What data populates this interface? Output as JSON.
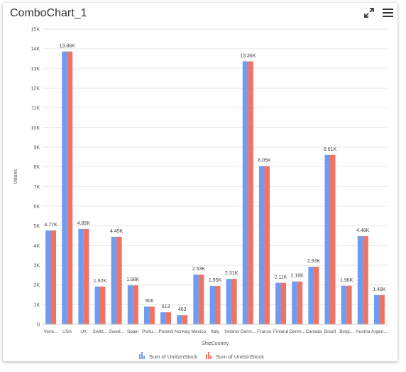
{
  "header": {
    "title": "ComboChart_1",
    "expand_icon": "expand-icon",
    "menu_icon": "hamburger-menu-icon"
  },
  "chart_data": {
    "type": "bar",
    "xlabel": "ShipCountry",
    "ylabel": "Values",
    "ylim": [
      0,
      15000
    ],
    "yticks": [
      "0",
      "1K",
      "2K",
      "3K",
      "4K",
      "5K",
      "6K",
      "7K",
      "8K",
      "9K",
      "10K",
      "11K",
      "12K",
      "13K",
      "14K",
      "15K"
    ],
    "categories": [
      "Vene...",
      "USA",
      "UK",
      "Switz...",
      "Swed...",
      "Spain",
      "Portu...",
      "Poland",
      "Norway",
      "Mexico",
      "Italy",
      "Ireland",
      "Germ...",
      "France",
      "Finland",
      "Denm...",
      "Canada",
      "Brazil",
      "Belgi...",
      "Austria",
      "Argen..."
    ],
    "data_labels": [
      "4.77K",
      "13.86K",
      "4.85K",
      "1.92K",
      "4.45K",
      "1.98K",
      "906",
      "613",
      "463",
      "2.53K",
      "1.95K",
      "2.31K",
      "13.36K",
      "8.05K",
      "2.11K",
      "2.18K",
      "2.93K",
      "8.61K",
      "1.96K",
      "4.48K",
      "1.49K"
    ],
    "series": [
      {
        "name": "Sum of UnitsInStock",
        "color": "#6f9cf0",
        "values": [
          4770,
          13860,
          4850,
          1920,
          4450,
          1980,
          906,
          613,
          463,
          2530,
          1950,
          2310,
          13360,
          8050,
          2110,
          2180,
          2930,
          8610,
          1960,
          4480,
          1490
        ]
      },
      {
        "name": "Sum of UnitsInStock",
        "color": "#ee7466",
        "values": [
          4770,
          13860,
          4850,
          1920,
          4450,
          1980,
          906,
          613,
          463,
          2530,
          1950,
          2310,
          13360,
          8050,
          2110,
          2180,
          2930,
          8610,
          1960,
          4480,
          1490
        ]
      }
    ],
    "grid": true,
    "legend_position": "bottom"
  }
}
